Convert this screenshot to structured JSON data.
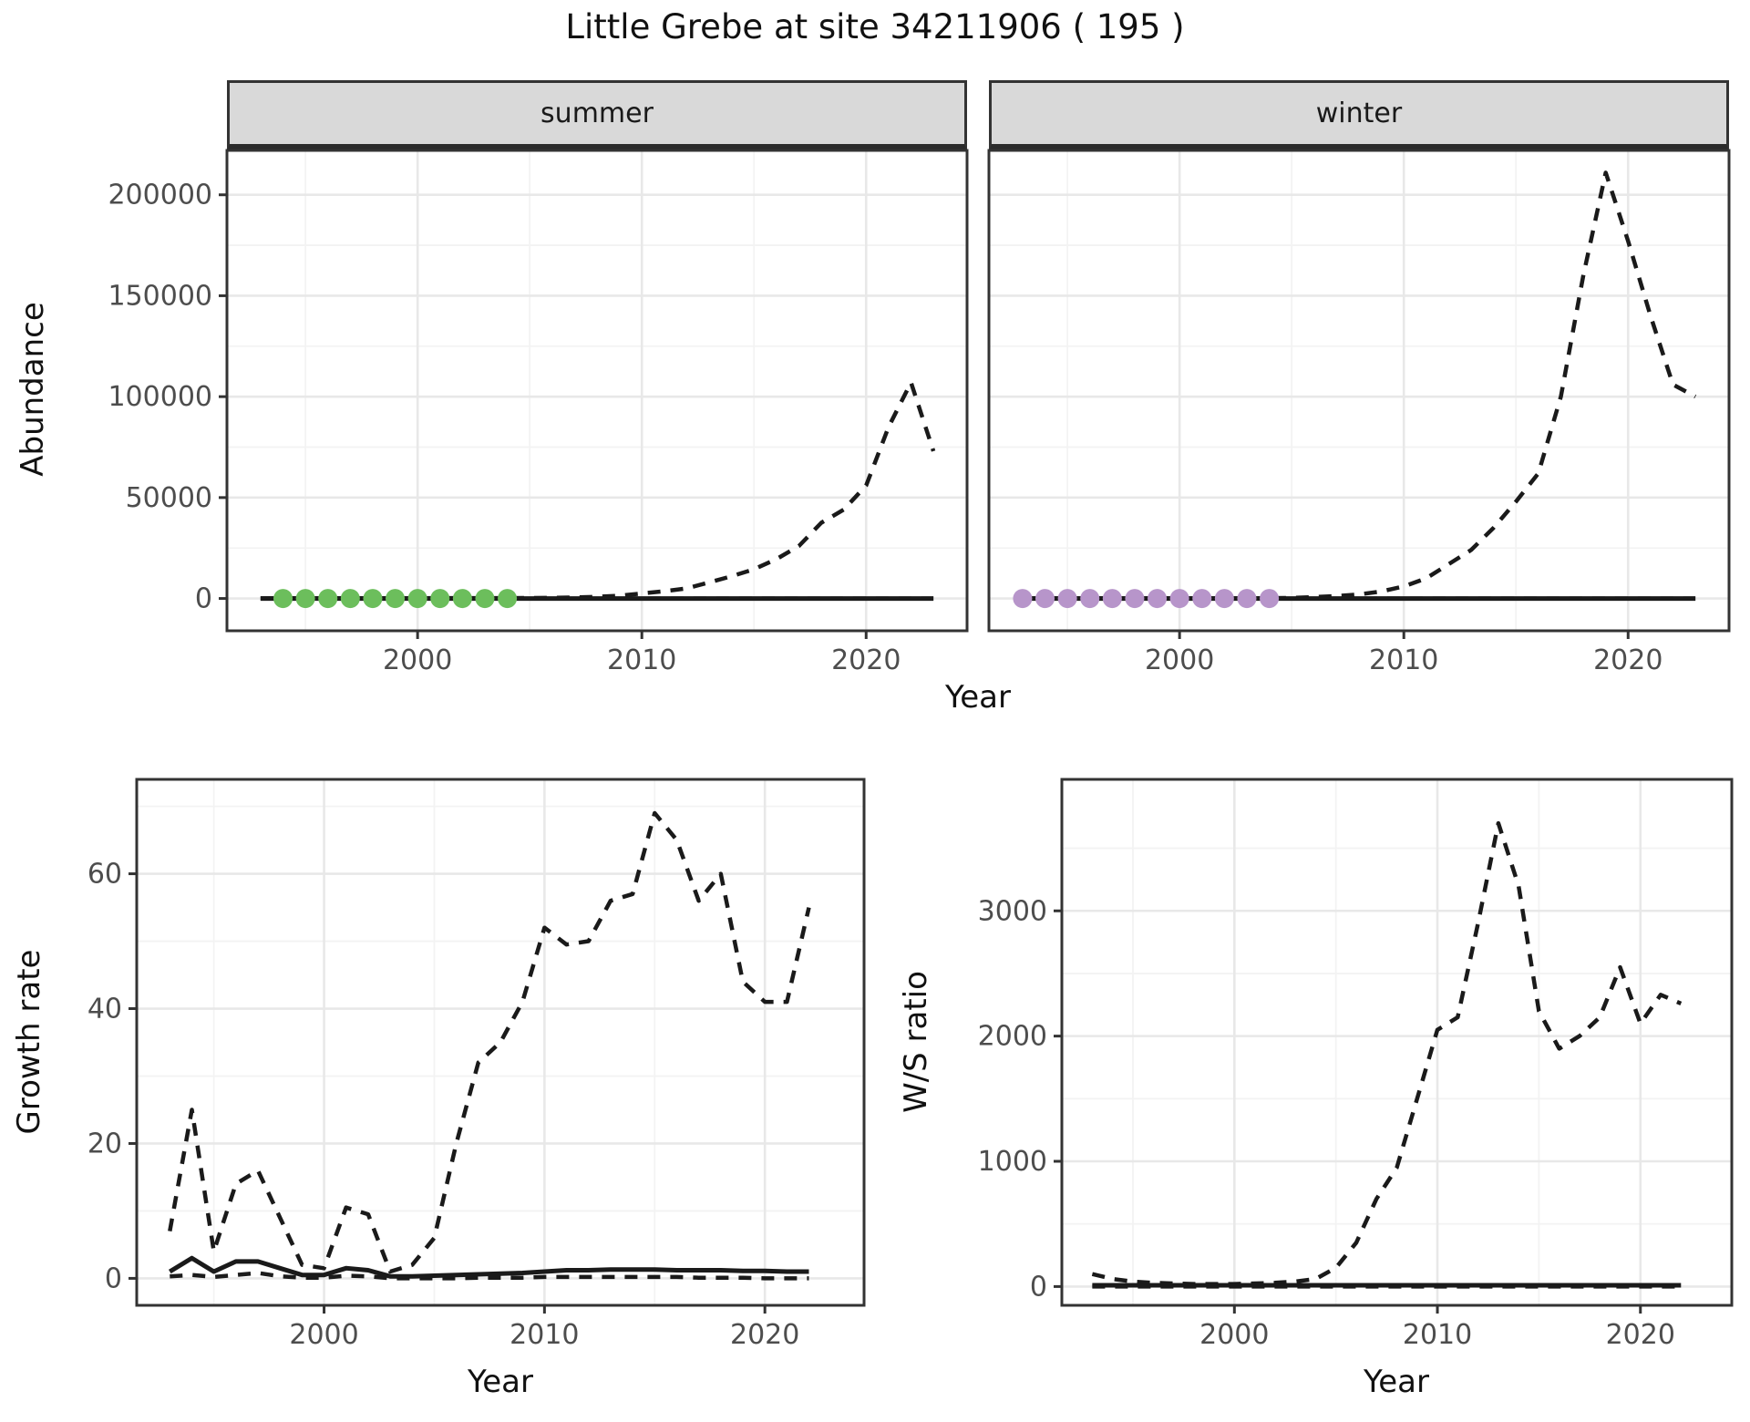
{
  "title": "Little Grebe at site 34211906 ( 195 )",
  "facets": {
    "summer": "summer",
    "winter": "winter"
  },
  "axis": {
    "y_title_abundance": "Abundance",
    "y_title_growth": "Growth rate",
    "y_title_ws": "W/S ratio",
    "x_title_top": "Year",
    "x_title_growth": "Year",
    "x_title_ws": "Year"
  },
  "colors": {
    "line": "#1A1A1A",
    "panel_border": "#333333",
    "grid_major": "#E8E8E8",
    "grid_minor": "#F3F3F3",
    "strip_bg": "#D9D9D9",
    "tick_text": "#4D4D4D",
    "tick_mark": "#333333",
    "summer_points": "#6CBE5C",
    "winter_points": "#B795CA"
  },
  "chart_data": [
    {
      "id": "abundance_summer",
      "type": "line",
      "facet": "summer",
      "title": "",
      "xlabel": "Year",
      "ylabel": "Abundance",
      "xlim": [
        1991.5,
        2024.5
      ],
      "ylim": [
        -16000,
        222000
      ],
      "xticks": [
        2000,
        2010,
        2020
      ],
      "yticks": [
        0,
        50000,
        100000,
        150000,
        200000
      ],
      "xminor": [
        1995,
        2005,
        2015
      ],
      "yminor": [
        25000,
        75000,
        125000,
        175000
      ],
      "grid": true,
      "legend": "none",
      "x": [
        1993,
        1994,
        1995,
        1996,
        1997,
        1998,
        1999,
        2000,
        2001,
        2002,
        2003,
        2004,
        2005,
        2006,
        2007,
        2008,
        2009,
        2010,
        2011,
        2012,
        2013,
        2014,
        2015,
        2016,
        2017,
        2018,
        2019,
        2020,
        2021,
        2022,
        2023
      ],
      "series": [
        {
          "name": "median",
          "style": "solid",
          "values": [
            0,
            0,
            0,
            0,
            0,
            0,
            0,
            0,
            0,
            0,
            0,
            0,
            0,
            0,
            0,
            0,
            0,
            0,
            0,
            0,
            0,
            0,
            0,
            0,
            0,
            0,
            0,
            0,
            0,
            0,
            0
          ]
        },
        {
          "name": "upper_ci",
          "style": "dashed",
          "values": [
            100,
            150,
            150,
            150,
            150,
            150,
            150,
            150,
            200,
            200,
            200,
            200,
            250,
            350,
            550,
            850,
            1400,
            2500,
            3600,
            5000,
            8000,
            11000,
            14500,
            19500,
            26000,
            37500,
            44000,
            56000,
            85000,
            107000,
            73000
          ]
        },
        {
          "name": "lower_ci",
          "style": "dashed",
          "values": [
            0,
            0,
            0,
            0,
            0,
            0,
            0,
            0,
            0,
            0,
            0,
            0,
            0,
            0,
            0,
            0,
            0,
            0,
            0,
            0,
            0,
            0,
            0,
            0,
            0,
            0,
            0,
            0,
            0,
            0,
            0
          ]
        }
      ],
      "points": {
        "name": "observed_counts",
        "color": "#6CBE5C",
        "x": [
          1994,
          1995,
          1996,
          1997,
          1998,
          1999,
          2000,
          2001,
          2002,
          2003,
          2004
        ],
        "y": [
          0,
          0,
          0,
          0,
          0,
          0,
          0,
          0,
          0,
          0,
          0
        ]
      }
    },
    {
      "id": "abundance_winter",
      "type": "line",
      "facet": "winter",
      "title": "",
      "xlabel": "Year",
      "ylabel": "Abundance",
      "xlim": [
        1991.5,
        2024.5
      ],
      "ylim": [
        -16000,
        222000
      ],
      "xticks": [
        2000,
        2010,
        2020
      ],
      "yticks": [
        0,
        50000,
        100000,
        150000,
        200000
      ],
      "xminor": [
        1995,
        2005,
        2015
      ],
      "yminor": [
        25000,
        75000,
        125000,
        175000
      ],
      "grid": true,
      "legend": "none",
      "x": [
        1993,
        1994,
        1995,
        1996,
        1997,
        1998,
        1999,
        2000,
        2001,
        2002,
        2003,
        2004,
        2005,
        2006,
        2007,
        2008,
        2009,
        2010,
        2011,
        2012,
        2013,
        2014,
        2015,
        2016,
        2017,
        2018,
        2019,
        2020,
        2021,
        2022,
        2023
      ],
      "series": [
        {
          "name": "median",
          "style": "solid",
          "values": [
            0,
            0,
            0,
            0,
            0,
            0,
            0,
            0,
            0,
            0,
            0,
            0,
            0,
            0,
            0,
            0,
            0,
            0,
            0,
            0,
            0,
            0,
            0,
            0,
            0,
            0,
            0,
            0,
            0,
            0,
            0
          ]
        },
        {
          "name": "upper_ci",
          "style": "dashed",
          "values": [
            100,
            100,
            100,
            100,
            100,
            100,
            100,
            100,
            100,
            100,
            100,
            150,
            300,
            700,
            1200,
            2000,
            3500,
            6000,
            10000,
            17000,
            24000,
            35000,
            48000,
            62000,
            100000,
            160000,
            211000,
            177000,
            140000,
            106000,
            100000
          ]
        },
        {
          "name": "lower_ci",
          "style": "dashed",
          "values": [
            0,
            0,
            0,
            0,
            0,
            0,
            0,
            0,
            0,
            0,
            0,
            0,
            0,
            0,
            0,
            0,
            0,
            0,
            0,
            0,
            0,
            0,
            0,
            0,
            0,
            0,
            0,
            0,
            0,
            0,
            0
          ]
        }
      ],
      "points": {
        "name": "observed_counts",
        "color": "#B795CA",
        "x": [
          1993,
          1994,
          1995,
          1996,
          1997,
          1998,
          1999,
          2000,
          2001,
          2002,
          2003,
          2004
        ],
        "y": [
          0,
          0,
          0,
          0,
          0,
          0,
          0,
          0,
          0,
          0,
          0,
          0
        ]
      }
    },
    {
      "id": "growth_rate",
      "type": "line",
      "title": "",
      "xlabel": "Year",
      "ylabel": "Growth rate",
      "xlim": [
        1991.5,
        2024.5
      ],
      "ylim": [
        -4,
        74
      ],
      "xticks": [
        2000,
        2010,
        2020
      ],
      "yticks": [
        0,
        20,
        40,
        60
      ],
      "xminor": [
        1995,
        2005,
        2015
      ],
      "yminor": [
        10,
        30,
        50,
        70
      ],
      "grid": true,
      "legend": "none",
      "x": [
        1993,
        1994,
        1995,
        1996,
        1997,
        1998,
        1999,
        2000,
        2001,
        2002,
        2003,
        2004,
        2005,
        2006,
        2007,
        2008,
        2009,
        2010,
        2011,
        2012,
        2013,
        2014,
        2015,
        2016,
        2017,
        2018,
        2019,
        2020,
        2021,
        2022
      ],
      "series": [
        {
          "name": "median",
          "style": "solid",
          "values": [
            1,
            3,
            1,
            2.5,
            2.5,
            1.5,
            0.5,
            0.5,
            1.5,
            1.2,
            0.3,
            0.3,
            0.4,
            0.5,
            0.6,
            0.7,
            0.8,
            1,
            1.2,
            1.2,
            1.3,
            1.3,
            1.3,
            1.2,
            1.2,
            1.2,
            1.1,
            1.1,
            1,
            1
          ]
        },
        {
          "name": "upper_ci",
          "style": "dashed",
          "values": [
            7,
            25,
            4,
            14,
            16,
            9,
            2,
            1.5,
            10.5,
            9.5,
            1,
            2,
            6,
            20,
            32,
            35,
            41,
            52,
            49.5,
            50,
            56,
            57,
            69,
            65,
            56,
            60,
            44,
            41,
            41,
            55
          ]
        },
        {
          "name": "lower_ci",
          "style": "dashed",
          "values": [
            0.3,
            0.5,
            0.2,
            0.5,
            0.8,
            0.3,
            0.1,
            0.1,
            0.4,
            0.3,
            0,
            0,
            0,
            0,
            0.1,
            0.1,
            0.1,
            0.2,
            0.2,
            0.2,
            0.2,
            0.2,
            0.2,
            0.2,
            0.1,
            0.1,
            0.1,
            0,
            0,
            0
          ]
        }
      ]
    },
    {
      "id": "ws_ratio",
      "type": "line",
      "title": "",
      "xlabel": "Year",
      "ylabel": "W/S ratio",
      "xlim": [
        1991.5,
        2024.5
      ],
      "ylim": [
        -150,
        4050
      ],
      "xticks": [
        2000,
        2010,
        2020
      ],
      "yticks": [
        0,
        1000,
        2000,
        3000
      ],
      "xminor": [
        1995,
        2005,
        2015
      ],
      "yminor": [
        500,
        1500,
        2500,
        3500
      ],
      "grid": true,
      "legend": "none",
      "x": [
        1993,
        1994,
        1995,
        1996,
        1997,
        1998,
        1999,
        2000,
        2001,
        2002,
        2003,
        2004,
        2005,
        2006,
        2007,
        2008,
        2009,
        2010,
        2011,
        2012,
        2013,
        2014,
        2015,
        2016,
        2017,
        2018,
        2019,
        2020,
        2021,
        2022
      ],
      "series": [
        {
          "name": "median",
          "style": "solid",
          "values": [
            10,
            10,
            10,
            10,
            10,
            10,
            10,
            10,
            10,
            10,
            10,
            10,
            10,
            10,
            10,
            10,
            10,
            10,
            10,
            10,
            10,
            10,
            10,
            10,
            10,
            10,
            10,
            10,
            10,
            10
          ]
        },
        {
          "name": "upper_ci",
          "style": "dashed",
          "values": [
            100,
            60,
            40,
            30,
            25,
            20,
            20,
            20,
            25,
            30,
            40,
            60,
            150,
            350,
            700,
            950,
            1500,
            2050,
            2150,
            2900,
            3700,
            3200,
            2200,
            1900,
            2000,
            2150,
            2550,
            2100,
            2330,
            2260
          ]
        },
        {
          "name": "lower_ci",
          "style": "dashed",
          "values": [
            0,
            0,
            0,
            0,
            0,
            0,
            0,
            0,
            0,
            0,
            0,
            0,
            0,
            0,
            0,
            0,
            0,
            0,
            0,
            0,
            0,
            0,
            0,
            0,
            0,
            0,
            0,
            0,
            0,
            0
          ]
        }
      ]
    }
  ]
}
